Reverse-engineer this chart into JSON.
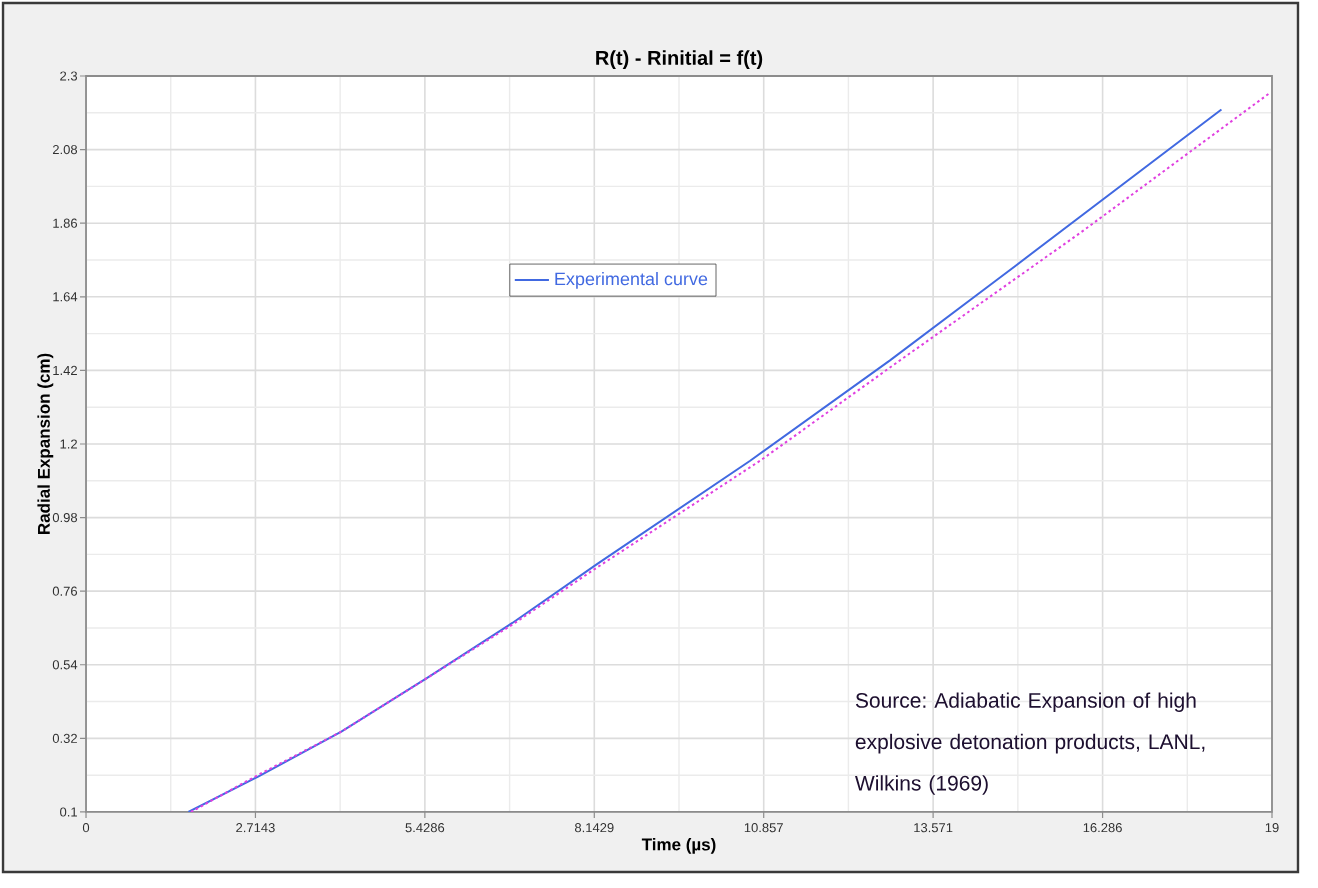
{
  "chart_data": {
    "type": "line",
    "title": "R(t) - Rinitial = f(t)",
    "xlabel": "Time (µs)",
    "ylabel": "Radial Expansion (cm)",
    "xlim": [
      0,
      19
    ],
    "xticks": [
      0,
      2.7143,
      5.4286,
      8.1429,
      10.857,
      13.571,
      16.286,
      19
    ],
    "ylim": [
      0.1,
      2.3
    ],
    "yticks": [
      0.1,
      0.32,
      0.54,
      0.76,
      0.98,
      1.2,
      1.42,
      1.64,
      1.86,
      2.08,
      2.3
    ],
    "grid": true,
    "legend": "top",
    "marker": "none",
    "series": [
      {
        "name": "Experimental curve",
        "color": "#4169e1",
        "line_style": "solid",
        "x": [
          1.64,
          2.75,
          4.09,
          5.46,
          6.83,
          8.18,
          10.64,
          12.88,
          14.59,
          18.19
        ],
        "values": [
          0.1,
          0.205,
          0.34,
          0.5,
          0.665,
          0.84,
          1.15,
          1.45,
          1.69,
          2.2
        ]
      },
      {
        "color": "#e040e0",
        "line_style": "dotted",
        "x": [
          1.68,
          2.75,
          4.09,
          5.46,
          6.83,
          8.14,
          10.8,
          13.04,
          15.92,
          18.97
        ],
        "values": [
          0.1,
          0.21,
          0.34,
          0.5,
          0.66,
          0.825,
          1.15,
          1.45,
          1.83,
          2.25
        ]
      }
    ],
    "annotations": [
      "Source: Adiabatic Expansion of high explosive detonation products, LANL, Wilkins (1969)"
    ]
  }
}
